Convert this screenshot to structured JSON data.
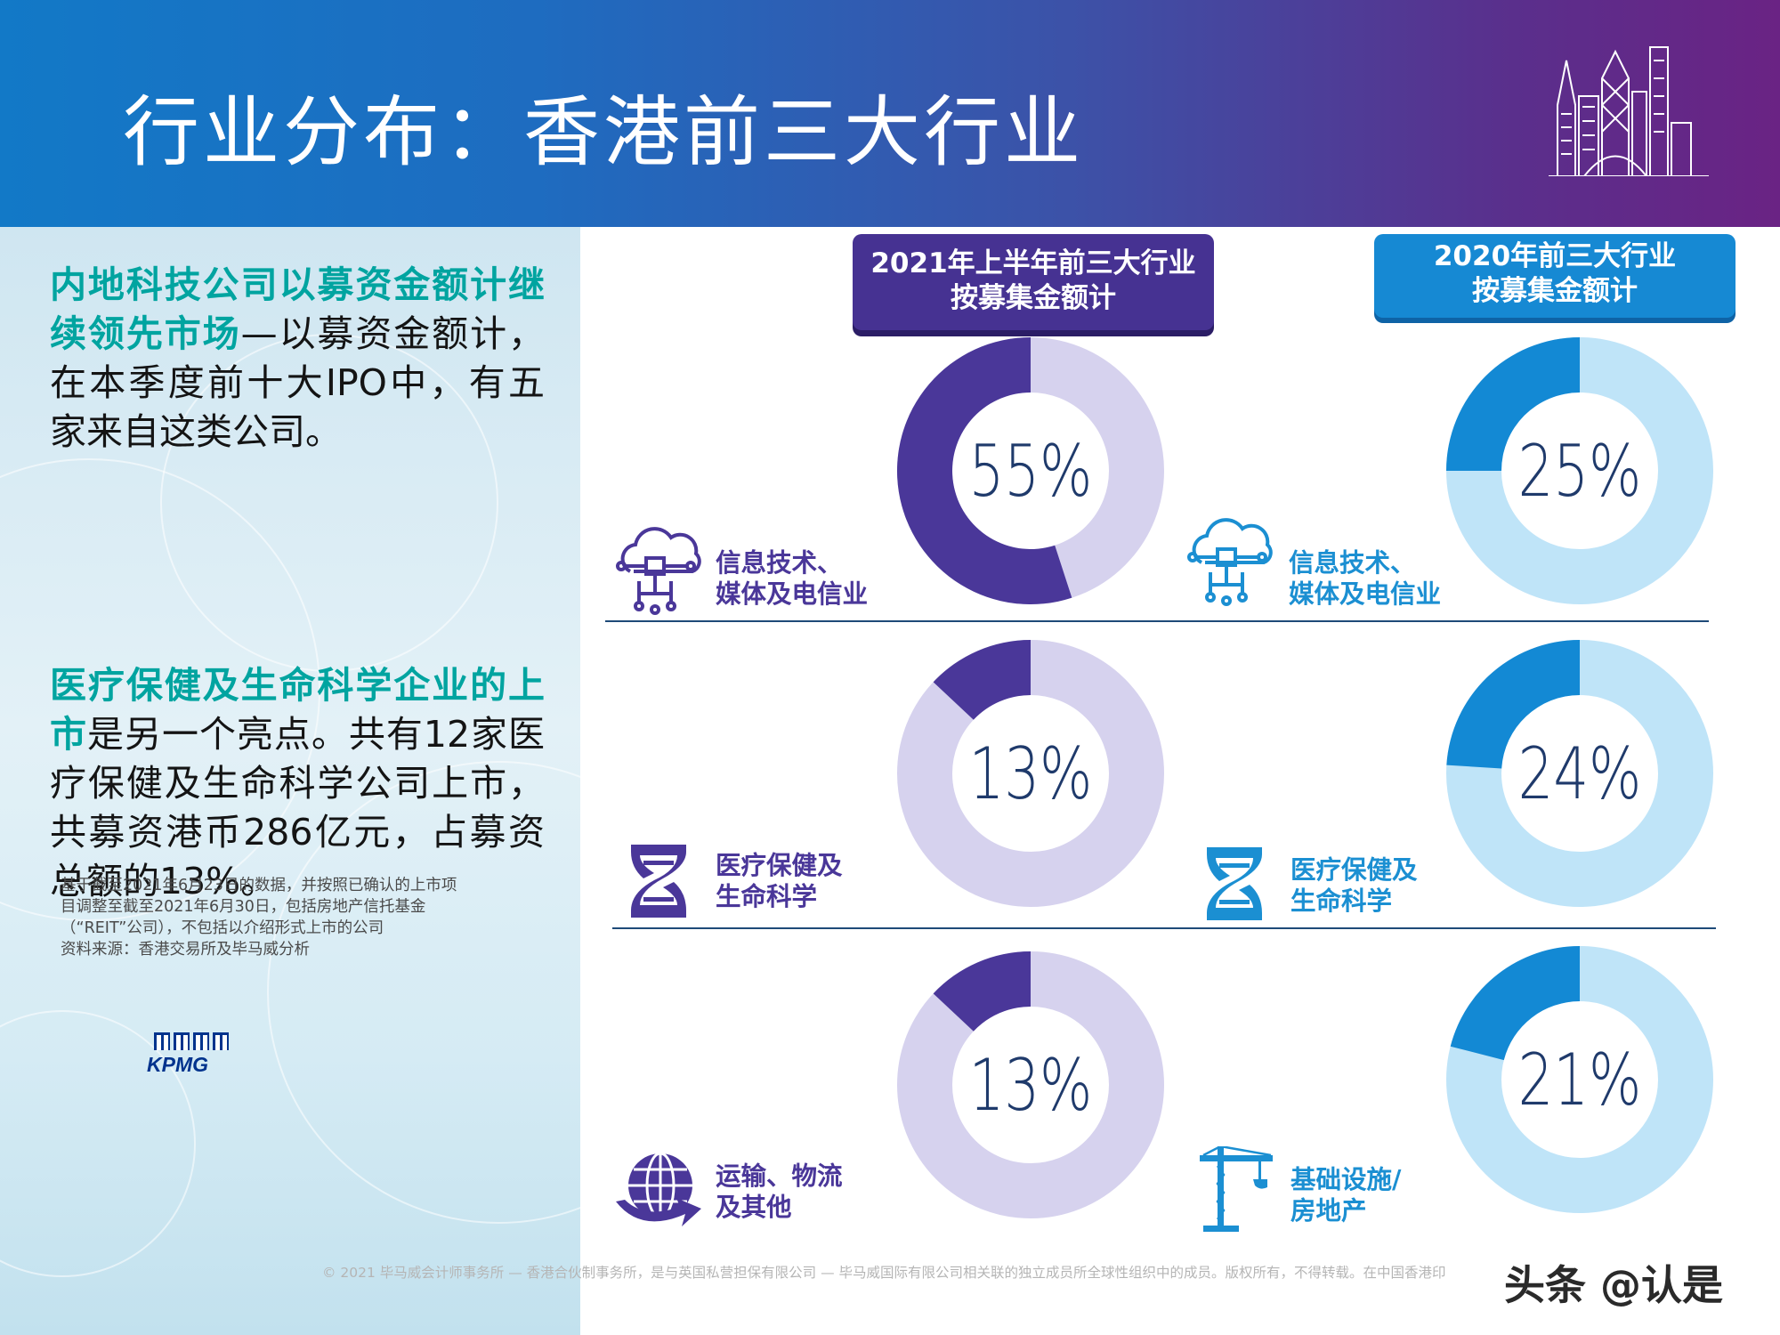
{
  "header": {
    "title": "行业分布：香港前三大行业"
  },
  "left_panel": {
    "p1_highlight": "内地科技公司以募资金额计继续领先市场",
    "p1_body": "—以募资金额计，在本季度前十大IPO中，有五家来自这类公司。",
    "p2_highlight": "医疗保健及生命科学企业的上市",
    "p2_body": "是另一个亮点。共有12家医疗保健及生命科学公司上市，共募资港币286亿元，占募资总额的13%。",
    "note_lines": [
      "基于截至2021年6月23日的数据，并按照已确认的上市项",
      "目调整至截至2021年6月30日，包括房地产信托基金",
      "（“REIT”公司），不包括以介绍形式上市的公司",
      "资料来源：香港交易所及毕马威分析"
    ],
    "logo_text": "KPMG"
  },
  "badges": {
    "left_line1": "2021年上半年前三大行业",
    "left_line2": "按募集金额计",
    "right_line1": "2020年前三大行业",
    "right_line2": "按募集金额计"
  },
  "industries": {
    "left": [
      {
        "line1": "信息技术、",
        "line2": "媒体及电信业",
        "icon": "cloud-network-icon"
      },
      {
        "line1": "医疗保健及",
        "line2": "生命科学",
        "icon": "dna-icon"
      },
      {
        "line1": "运输、物流",
        "line2": "及其他",
        "icon": "globe-arrow-icon"
      }
    ],
    "right": [
      {
        "line1": "信息技术、",
        "line2": "媒体及电信业",
        "icon": "cloud-network-icon"
      },
      {
        "line1": "医疗保健及",
        "line2": "生命科学",
        "icon": "dna-icon"
      },
      {
        "line1": "基础设施/",
        "line2": "房地产",
        "icon": "crane-icon"
      }
    ]
  },
  "colors": {
    "purple_dark": "#4a3799",
    "purple_light": "#d6d2ee",
    "blue_dark": "#1389d4",
    "blue_light": "#bfe4f8",
    "pct_text": "#1f3a6b"
  },
  "chart_data": [
    {
      "type": "pie",
      "title": "2021年上半年前三大行业 按募集金额计",
      "donuts": [
        {
          "label": "信息技术、媒体及电信业",
          "value": 55,
          "display": "55%"
        },
        {
          "label": "医疗保健及生命科学",
          "value": 13,
          "display": "13%"
        },
        {
          "label": "运输、物流及其他",
          "value": 13,
          "display": "13%"
        }
      ]
    },
    {
      "type": "pie",
      "title": "2020年前三大行业 按募集金额计",
      "donuts": [
        {
          "label": "信息技术、媒体及电信业",
          "value": 25,
          "display": "25%"
        },
        {
          "label": "医疗保健及生命科学",
          "value": 24,
          "display": "24%"
        },
        {
          "label": "基础设施/房地产",
          "value": 21,
          "display": "21%"
        }
      ]
    }
  ],
  "footer": {
    "copyright": "© 2021 毕马威会计师事务所 — 香港合伙制事务所，是与英国私营担保有限公司 — 毕马威国际有限公司相关联的独立成员所全球性组织中的成员。版权所有，不得转载。在中国香港印",
    "watermark": "头条 @认是"
  }
}
